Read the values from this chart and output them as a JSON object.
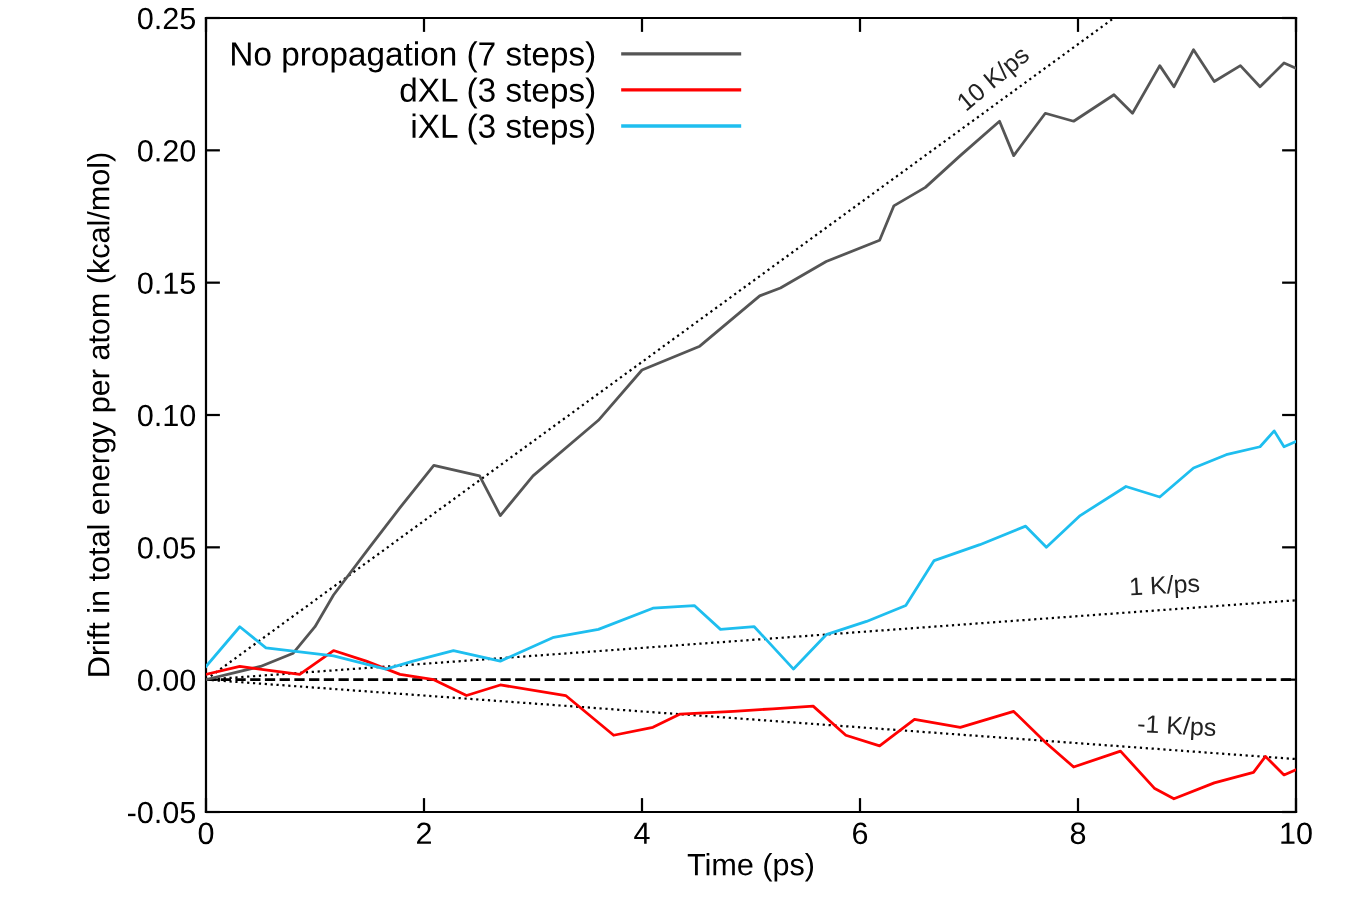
{
  "chart_data": {
    "type": "line",
    "xlabel": "Time (ps)",
    "ylabel": "Drift in total energy per atom (kcal/mol)",
    "xlim": [
      0,
      10
    ],
    "ylim": [
      -0.05,
      0.25
    ],
    "xticks": [
      0,
      2,
      4,
      6,
      8,
      10
    ],
    "yticks": [
      {
        "value": -0.05,
        "label": "-0.05"
      },
      {
        "value": 0,
        "label": "0.00"
      },
      {
        "value": 0.05,
        "label": "0.05"
      },
      {
        "value": 0.1,
        "label": "0.10"
      },
      {
        "value": 0.15,
        "label": "0.15"
      },
      {
        "value": 0.2,
        "label": "0.20"
      },
      {
        "value": 0.25,
        "label": "0.25"
      }
    ],
    "grid": false,
    "legend": "top left",
    "marker": "none",
    "line_style": "solid",
    "ref_lines": [
      {
        "axis": "y",
        "value": 0,
        "color": "#000000",
        "line_style": "dashed"
      }
    ],
    "annotations": [
      {
        "text": "10 K/ps",
        "x": 7.3,
        "y": 0.219
      },
      {
        "text": "1 K/ps",
        "x": 8.8,
        "y": 0.0264
      },
      {
        "text": "-1 K/ps",
        "x": 8.9,
        "y": -0.0267
      }
    ],
    "series": [
      {
        "name": "No propagation (7 steps)",
        "color": "#555555",
        "x": [
          0,
          0.5,
          0.8,
          1.0,
          1.17,
          1.5,
          1.78,
          2.09,
          2.51,
          2.7,
          3.0,
          3.6,
          4.0,
          4.53,
          5.08,
          5.27,
          5.69,
          6.18,
          6.31,
          6.6,
          6.92,
          7.28,
          7.41,
          7.7,
          7.96,
          8.33,
          8.5,
          8.75,
          8.88,
          9.06,
          9.25,
          9.49,
          9.67,
          9.89,
          10
        ],
        "values": [
          0,
          0.005,
          0.01,
          0.02,
          0.032,
          0.05,
          0.065,
          0.081,
          0.077,
          0.062,
          0.077,
          0.098,
          0.117,
          0.126,
          0.145,
          0.148,
          0.158,
          0.166,
          0.179,
          0.186,
          0.198,
          0.211,
          0.198,
          0.214,
          0.211,
          0.221,
          0.214,
          0.232,
          0.224,
          0.238,
          0.226,
          0.232,
          0.224,
          0.233,
          0.231
        ]
      },
      {
        "name": "dXL (3 steps)",
        "color": "#ff0000",
        "x": [
          0,
          0.31,
          0.86,
          1.17,
          1.47,
          1.78,
          2.09,
          2.39,
          2.7,
          3.3,
          3.74,
          4.1,
          4.35,
          4.84,
          5.2,
          5.57,
          5.87,
          6.18,
          6.5,
          6.92,
          7.41,
          7.71,
          7.96,
          8.39,
          8.7,
          8.88,
          9.25,
          9.61,
          9.72,
          9.89,
          10
        ],
        "values": [
          0.002,
          0.005,
          0.002,
          0.011,
          0.007,
          0.002,
          0.0,
          -0.006,
          -0.002,
          -0.006,
          -0.021,
          -0.018,
          -0.013,
          -0.012,
          -0.011,
          -0.01,
          -0.021,
          -0.025,
          -0.015,
          -0.018,
          -0.012,
          -0.024,
          -0.033,
          -0.027,
          -0.041,
          -0.045,
          -0.039,
          -0.035,
          -0.029,
          -0.036,
          -0.034
        ]
      },
      {
        "name": "iXL (3 steps)",
        "color": "#1ebeef",
        "x": [
          0,
          0.31,
          0.55,
          1.17,
          1.65,
          1.9,
          2.27,
          2.7,
          3.19,
          3.6,
          4.1,
          4.48,
          4.72,
          5.03,
          5.39,
          5.69,
          6.06,
          6.42,
          6.68,
          7.1,
          7.52,
          7.71,
          8.02,
          8.44,
          8.75,
          9.06,
          9.36,
          9.67,
          9.8,
          9.89,
          10
        ],
        "values": [
          0.005,
          0.02,
          0.012,
          0.009,
          0.004,
          0.007,
          0.011,
          0.007,
          0.016,
          0.019,
          0.027,
          0.028,
          0.019,
          0.02,
          0.004,
          0.017,
          0.022,
          0.028,
          0.045,
          0.051,
          0.058,
          0.05,
          0.062,
          0.073,
          0.069,
          0.08,
          0.085,
          0.088,
          0.094,
          0.088,
          0.09
        ]
      },
      {
        "type": "line",
        "color": "#000000",
        "line_style": "dotted",
        "x": [
          0,
          8.33
        ],
        "values": [
          0,
          0.25
        ]
      },
      {
        "type": "line",
        "color": "#000000",
        "line_style": "dotted",
        "x": [
          0,
          10
        ],
        "values": [
          0,
          0.03
        ]
      },
      {
        "type": "line",
        "color": "#000000",
        "line_style": "dotted",
        "x": [
          0,
          10
        ],
        "values": [
          0,
          -0.03
        ]
      }
    ]
  }
}
